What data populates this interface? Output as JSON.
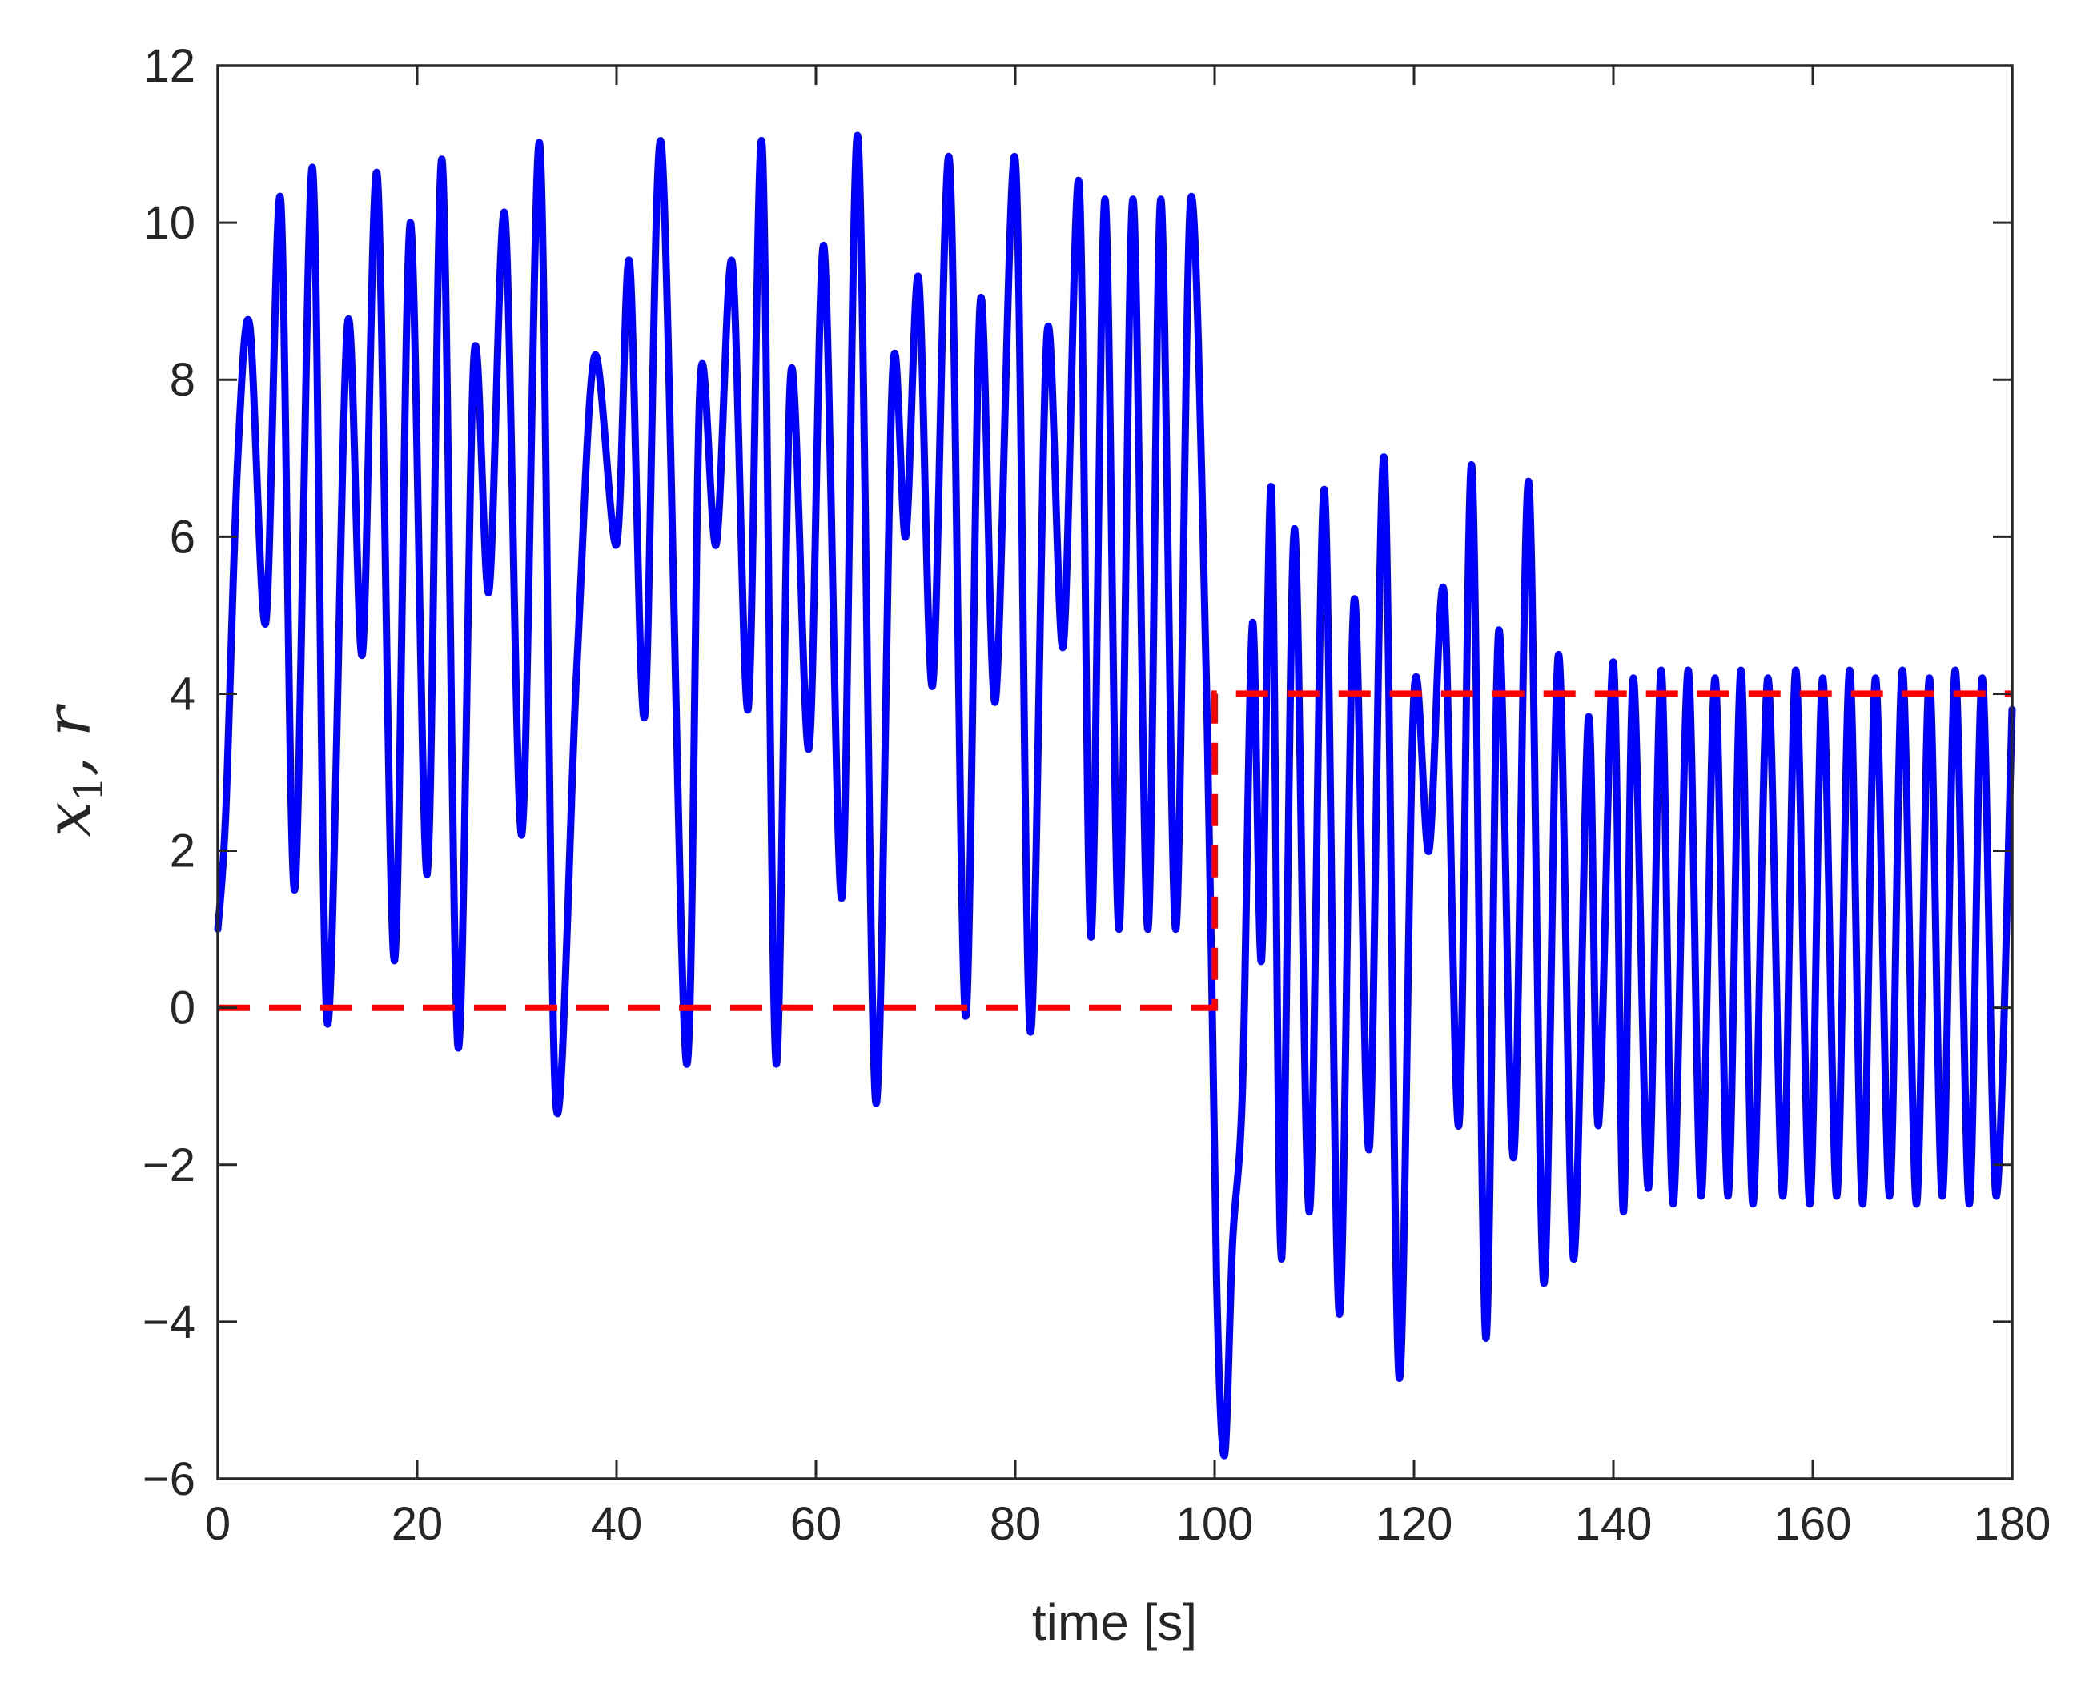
{
  "chart_data": {
    "type": "line",
    "xlabel": "time [s]",
    "ylabel": {
      "var": "x",
      "sub": "1",
      "sep": ", ",
      "var2": "r"
    },
    "xlim": [
      0,
      180
    ],
    "ylim": [
      -6,
      12
    ],
    "xticks": [
      0,
      20,
      40,
      60,
      80,
      100,
      120,
      140,
      160,
      180
    ],
    "yticks": [
      -6,
      -4,
      -2,
      0,
      2,
      4,
      6,
      8,
      10,
      12
    ],
    "grid": false,
    "legend": "none",
    "series": [
      {
        "color": "#0000ff",
        "style": "solid",
        "x": [
          0,
          0.8,
          2.0,
          3.2,
          4.8,
          6.3,
          7.7,
          9.5,
          11.0,
          13.0,
          14.5,
          16.0,
          17.7,
          19.3,
          21.0,
          22.5,
          24.1,
          25.7,
          27.2,
          28.8,
          30.5,
          32.3,
          33.9,
          36.0,
          37.8,
          40.0,
          41.3,
          42.8,
          44.5,
          47.0,
          48.4,
          50.0,
          51.6,
          53.2,
          54.6,
          56.0,
          57.5,
          59.3,
          60.8,
          62.6,
          64.2,
          66.0,
          67.7,
          69.0,
          70.3,
          71.7,
          73.4,
          75.0,
          76.5,
          78.0,
          80.0,
          81.5,
          83.2,
          84.8,
          86.4,
          87.6,
          89.0,
          90.4,
          91.8,
          93.3,
          94.6,
          96.1,
          97.6,
          99.2,
          100.2,
          101.0,
          101.8,
          102.8,
          103.8,
          104.7,
          105.7,
          106.7,
          108.0,
          109.5,
          111.0,
          112.5,
          114.0,
          115.5,
          117.0,
          118.5,
          120.0,
          121.5,
          123.0,
          124.5,
          125.8,
          127.2,
          128.5,
          130.0,
          131.5,
          133.0,
          134.5,
          136.0,
          137.5,
          138.5,
          140.0,
          141.0,
          142.0,
          143.5,
          144.8,
          146.0,
          147.5,
          148.8,
          150.2,
          151.5,
          152.8,
          154.0,
          155.5,
          157.0,
          158.3,
          159.7,
          161.0,
          162.4,
          163.7,
          165.0,
          166.3,
          167.7,
          169.0,
          170.4,
          171.7,
          173.0,
          174.3,
          175.7,
          177.0,
          178.4,
          180.0
        ],
        "y": [
          1.0,
          2.5,
          7.0,
          8.7,
          4.9,
          10.3,
          1.5,
          10.7,
          -0.2,
          8.7,
          4.5,
          10.6,
          0.6,
          10.0,
          1.7,
          10.8,
          -0.5,
          8.3,
          5.3,
          10.1,
          2.2,
          11.0,
          -1.2,
          4.3,
          8.3,
          5.9,
          9.5,
          3.7,
          11.0,
          -0.7,
          8.0,
          5.9,
          9.5,
          3.8,
          11.0,
          -0.7,
          8.1,
          3.3,
          9.7,
          1.4,
          11.1,
          -1.2,
          8.1,
          6.0,
          9.3,
          4.1,
          10.8,
          -0.1,
          9.0,
          3.9,
          10.8,
          -0.3,
          8.6,
          4.6,
          10.5,
          0.9,
          10.3,
          1.0,
          10.3,
          1.0,
          10.3,
          1.0,
          10.3,
          4.0,
          -3.5,
          -5.7,
          -3.0,
          -1.0,
          4.9,
          0.6,
          6.6,
          -3.2,
          6.1,
          -2.6,
          6.6,
          -3.9,
          5.2,
          -1.8,
          7.0,
          -4.7,
          4.0,
          2.0,
          5.3,
          -1.5,
          6.9,
          -4.2,
          4.8,
          -1.9,
          6.7,
          -3.5,
          4.5,
          -3.2,
          3.7,
          -1.5,
          4.4,
          -2.6,
          4.2,
          -2.3,
          4.3,
          -2.5,
          4.3,
          -2.4,
          4.2,
          -2.4,
          4.3,
          -2.5,
          4.2,
          -2.4,
          4.3,
          -2.5,
          4.2,
          -2.4,
          4.3,
          -2.5,
          4.2,
          -2.4,
          4.3,
          -2.5,
          4.2,
          -2.4,
          4.3,
          -2.5,
          4.2,
          -2.4,
          3.8
        ]
      },
      {
        "color": "#ff0000",
        "style": "dashed",
        "x": [
          0,
          100,
          100,
          180
        ],
        "y": [
          0,
          0,
          4,
          4
        ]
      }
    ]
  }
}
